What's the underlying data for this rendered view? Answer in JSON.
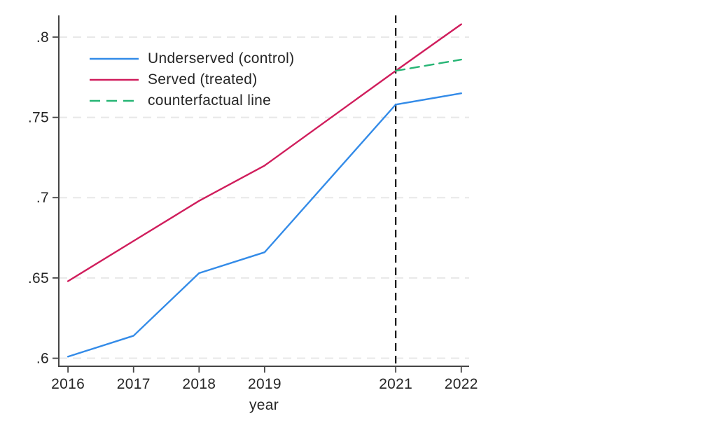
{
  "chart_data": {
    "type": "line",
    "title": "",
    "xlabel": "year",
    "ylabel": "",
    "xlim": [
      2015.86,
      2022.12
    ],
    "ylim": [
      0.595,
      0.8135
    ],
    "x_ticks": [
      2016,
      2017,
      2018,
      2019,
      2021,
      2022
    ],
    "x_tick_labels": [
      "2016",
      "2017",
      "2018",
      "2019",
      "2021",
      "2022"
    ],
    "y_ticks": [
      0.6,
      0.65,
      0.7,
      0.75,
      0.8
    ],
    "y_tick_labels": [
      ".6",
      ".65",
      ".7",
      ".75",
      ".8"
    ],
    "grid": {
      "horizontal_gridlines": true,
      "style": "dashed",
      "color": "#e8e8e8"
    },
    "legend": {
      "position": "top-left-inside",
      "border": false
    },
    "series": [
      {
        "name": "Underserved (control)",
        "color": "#338be8",
        "style": "solid",
        "x": [
          2016,
          2017,
          2018,
          2019,
          2021,
          2022
        ],
        "values": [
          0.601,
          0.614,
          0.653,
          0.666,
          0.758,
          0.765
        ]
      },
      {
        "name": "Served (treated)",
        "color": "#d01d5c",
        "style": "solid",
        "x": [
          2016,
          2017,
          2018,
          2019,
          2021,
          2022
        ],
        "values": [
          0.648,
          0.673,
          0.698,
          0.72,
          0.779,
          0.808
        ]
      },
      {
        "name": "counterfactual line",
        "color": "#27b575",
        "style": "dashed",
        "x": [
          2021,
          2022
        ],
        "values": [
          0.779,
          0.786
        ]
      }
    ],
    "vline": {
      "x": 2021,
      "style": "dashed",
      "color": "#141414"
    },
    "axis_color": "#454545",
    "text_color": "#262626"
  }
}
